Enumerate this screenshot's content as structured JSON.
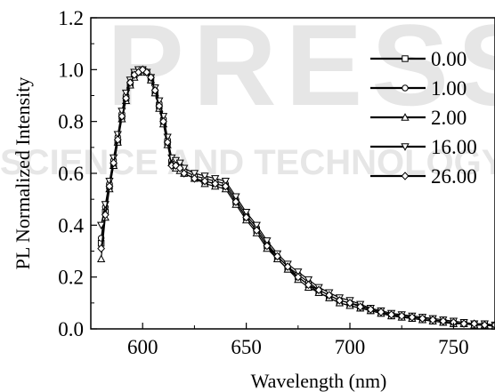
{
  "chart_data": {
    "type": "line",
    "title": "",
    "xlabel": "Wavelength (nm)",
    "ylabel": "PL Normalized Intensity",
    "xlim": [
      575,
      770
    ],
    "ylim": [
      0.0,
      1.2
    ],
    "xticks": [
      600,
      650,
      700,
      750
    ],
    "xtick_labels": [
      "600",
      "650",
      "700",
      "750"
    ],
    "yticks": [
      0.0,
      0.2,
      0.4,
      0.6,
      0.8,
      1.0,
      1.2
    ],
    "ytick_labels": [
      "0.0",
      "0.2",
      "0.4",
      "0.6",
      "0.8",
      "1.0",
      "1.2"
    ],
    "grid": false,
    "legend_position": "top-right",
    "x": [
      580,
      582,
      584,
      586,
      588,
      590,
      592,
      594,
      596,
      598,
      600,
      602,
      604,
      606,
      608,
      610,
      612,
      614,
      616,
      618,
      620,
      625,
      630,
      635,
      640,
      645,
      650,
      655,
      660,
      665,
      670,
      675,
      680,
      685,
      690,
      695,
      700,
      705,
      710,
      715,
      720,
      725,
      730,
      735,
      740,
      745,
      750,
      755,
      760,
      765,
      770
    ],
    "series": [
      {
        "name": "0.00",
        "marker": "square",
        "values": [
          0.33,
          0.45,
          0.55,
          0.63,
          0.72,
          0.82,
          0.89,
          0.94,
          0.98,
          0.99,
          1.0,
          0.99,
          0.96,
          0.91,
          0.86,
          0.8,
          0.72,
          0.64,
          0.63,
          0.62,
          0.6,
          0.58,
          0.57,
          0.56,
          0.55,
          0.49,
          0.43,
          0.38,
          0.32,
          0.27,
          0.23,
          0.2,
          0.17,
          0.14,
          0.12,
          0.1,
          0.09,
          0.08,
          0.07,
          0.06,
          0.05,
          0.045,
          0.04,
          0.035,
          0.03,
          0.025,
          0.02,
          0.02,
          0.015,
          0.015,
          0.01
        ]
      },
      {
        "name": "1.00",
        "marker": "circle",
        "values": [
          0.35,
          0.47,
          0.56,
          0.65,
          0.74,
          0.83,
          0.9,
          0.95,
          0.98,
          1.0,
          1.0,
          0.99,
          0.97,
          0.92,
          0.87,
          0.81,
          0.73,
          0.65,
          0.64,
          0.63,
          0.61,
          0.59,
          0.58,
          0.57,
          0.56,
          0.5,
          0.44,
          0.39,
          0.33,
          0.28,
          0.24,
          0.21,
          0.18,
          0.15,
          0.13,
          0.11,
          0.1,
          0.09,
          0.075,
          0.065,
          0.055,
          0.05,
          0.045,
          0.04,
          0.035,
          0.03,
          0.025,
          0.02,
          0.02,
          0.015,
          0.015
        ]
      },
      {
        "name": "2.00",
        "marker": "triangle",
        "values": [
          0.27,
          0.43,
          0.54,
          0.63,
          0.72,
          0.81,
          0.88,
          0.94,
          0.97,
          0.99,
          1.0,
          0.99,
          0.96,
          0.91,
          0.85,
          0.79,
          0.71,
          0.64,
          0.62,
          0.61,
          0.6,
          0.58,
          0.56,
          0.55,
          0.54,
          0.48,
          0.42,
          0.37,
          0.31,
          0.27,
          0.23,
          0.19,
          0.16,
          0.14,
          0.12,
          0.1,
          0.09,
          0.08,
          0.07,
          0.06,
          0.05,
          0.045,
          0.04,
          0.035,
          0.03,
          0.025,
          0.02,
          0.02,
          0.015,
          0.015,
          0.01
        ]
      },
      {
        "name": "16.00",
        "marker": "down-triangle",
        "values": [
          0.4,
          0.48,
          0.57,
          0.66,
          0.75,
          0.84,
          0.91,
          0.96,
          0.99,
          1.0,
          1.0,
          0.99,
          0.97,
          0.93,
          0.88,
          0.82,
          0.74,
          0.66,
          0.65,
          0.64,
          0.62,
          0.6,
          0.59,
          0.58,
          0.57,
          0.51,
          0.45,
          0.4,
          0.34,
          0.29,
          0.25,
          0.22,
          0.19,
          0.16,
          0.14,
          0.12,
          0.11,
          0.095,
          0.08,
          0.07,
          0.06,
          0.055,
          0.05,
          0.045,
          0.04,
          0.035,
          0.03,
          0.025,
          0.02,
          0.02,
          0.015
        ]
      },
      {
        "name": "26.00",
        "marker": "diamond",
        "values": [
          0.31,
          0.44,
          0.55,
          0.64,
          0.73,
          0.82,
          0.89,
          0.95,
          0.98,
          0.99,
          1.0,
          0.99,
          0.97,
          0.92,
          0.86,
          0.8,
          0.72,
          0.63,
          0.63,
          0.62,
          0.6,
          0.58,
          0.57,
          0.56,
          0.55,
          0.49,
          0.43,
          0.38,
          0.32,
          0.28,
          0.24,
          0.2,
          0.17,
          0.15,
          0.13,
          0.11,
          0.1,
          0.085,
          0.075,
          0.065,
          0.055,
          0.05,
          0.045,
          0.04,
          0.035,
          0.03,
          0.025,
          0.02,
          0.02,
          0.015,
          0.015
        ]
      }
    ]
  },
  "watermark": {
    "line1": "PRESS",
    "line2": "SCIENCE AND TECHNOLOGY PUBLICATIONS"
  }
}
